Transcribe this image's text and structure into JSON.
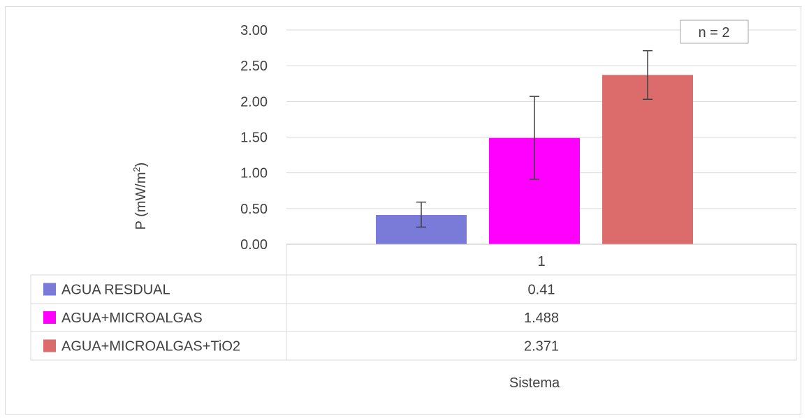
{
  "chart_data": {
    "type": "bar",
    "categories": [
      "1"
    ],
    "series": [
      {
        "name": "AGUA RESDUAL",
        "values": [
          0.41
        ],
        "value_label": "0.41",
        "error_low": [
          0.24
        ],
        "error_high": [
          0.59
        ],
        "color": "#7a7ad8"
      },
      {
        "name": "AGUA+MICROALGAS",
        "values": [
          1.488
        ],
        "value_label": "1.488",
        "error_low": [
          0.91
        ],
        "error_high": [
          2.07
        ],
        "color": "#ff00ff"
      },
      {
        "name": "AGUA+MICROALGAS+TiO2",
        "values": [
          2.371
        ],
        "value_label": "2.371",
        "error_low": [
          2.03
        ],
        "error_high": [
          2.71
        ],
        "color": "#dc6b6b"
      }
    ],
    "ylabel_main": "P (mW/m",
    "ylabel_sup": "2",
    "ylabel_end": ")",
    "xlabel": "Sistema",
    "ylim": [
      0,
      3
    ],
    "yticks": [
      "0.00",
      "0.50",
      "1.00",
      "1.50",
      "2.00",
      "2.50",
      "3.00"
    ],
    "annotation": "n = 2",
    "grid": true,
    "legend": "data-table"
  }
}
